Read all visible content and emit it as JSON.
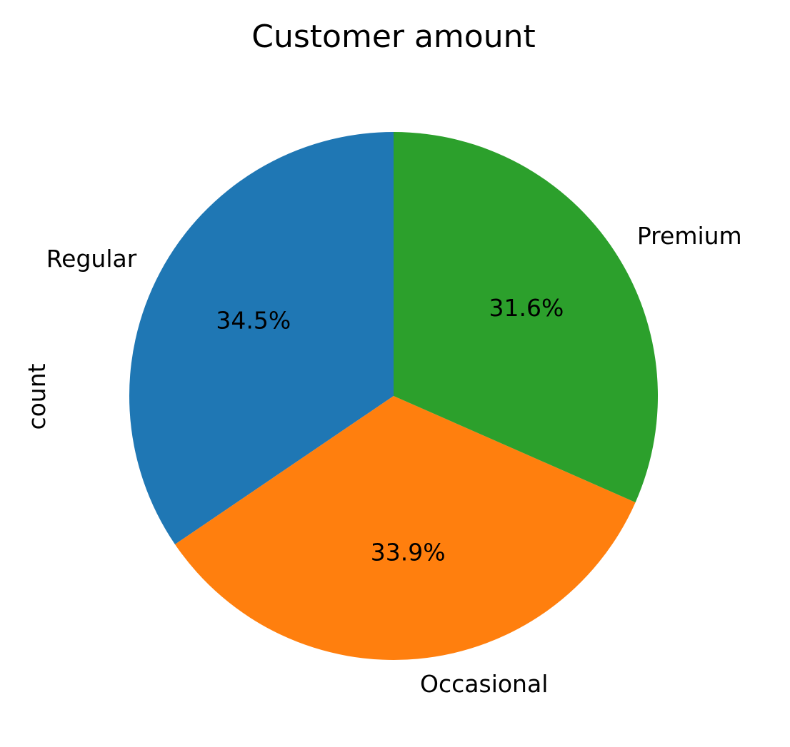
{
  "chart_data": {
    "type": "pie",
    "title": "Customer amount",
    "ylabel": "count",
    "start_angle_deg": 90,
    "direction": "counterclockwise",
    "slices": [
      {
        "label": "Regular",
        "percent_label": "34.5%",
        "value": 34.5,
        "color": "#1f77b4"
      },
      {
        "label": "Occasional",
        "percent_label": "33.9%",
        "value": 33.9,
        "color": "#ff7f0e"
      },
      {
        "label": "Premium",
        "percent_label": "31.6%",
        "value": 31.6,
        "color": "#2ca02c"
      }
    ]
  }
}
